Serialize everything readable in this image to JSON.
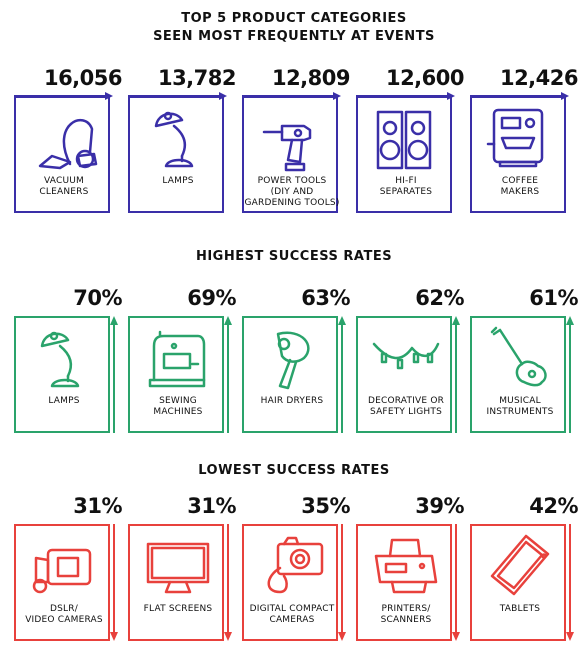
{
  "colors": {
    "top": "#3a2fa8",
    "highest": "#2aa36b",
    "lowest": "#e8413c"
  },
  "sections": [
    {
      "title": "TOP 5 PRODUCT CATEGORIES\nSEEN MOST FREQUENTLY AT EVENTS",
      "items": [
        {
          "value": "16,056",
          "label": "VACUUM\nCLEANERS",
          "icon": "vacuum-cleaner-icon"
        },
        {
          "value": "13,782",
          "label": "LAMPS",
          "icon": "desk-lamp-icon"
        },
        {
          "value": "12,809",
          "label": "POWER TOOLS\n(DIY AND\nGARDENING TOOLS)",
          "icon": "power-drill-icon"
        },
        {
          "value": "12,600",
          "label": "HI-FI\nSEPARATES",
          "icon": "speakers-icon"
        },
        {
          "value": "12,426",
          "label": "COFFEE\nMAKERS",
          "icon": "coffee-machine-icon"
        }
      ]
    },
    {
      "title": "HIGHEST SUCCESS RATES",
      "items": [
        {
          "value": "70%",
          "label": "LAMPS",
          "icon": "desk-lamp-icon"
        },
        {
          "value": "69%",
          "label": "SEWING\nMACHINES",
          "icon": "sewing-machine-icon"
        },
        {
          "value": "63%",
          "label": "HAIR DRYERS",
          "icon": "hair-dryer-icon"
        },
        {
          "value": "62%",
          "label": "DECORATIVE OR\nSAFETY LIGHTS",
          "icon": "string-lights-icon"
        },
        {
          "value": "61%",
          "label": "MUSICAL\nINSTRUMENTS",
          "icon": "guitar-icon"
        }
      ]
    },
    {
      "title": "LOWEST SUCCESS RATES",
      "items": [
        {
          "value": "31%",
          "label": "DSLR/\nVIDEO CAMERAS",
          "icon": "video-camera-icon"
        },
        {
          "value": "31%",
          "label": "FLAT SCREENS",
          "icon": "flat-screen-tv-icon"
        },
        {
          "value": "35%",
          "label": "DIGITAL COMPACT\nCAMERAS",
          "icon": "compact-camera-icon"
        },
        {
          "value": "39%",
          "label": "PRINTERS/\nSCANNERS",
          "icon": "printer-scanner-icon"
        },
        {
          "value": "42%",
          "label": "TABLETS",
          "icon": "tablet-icon"
        }
      ]
    }
  ]
}
